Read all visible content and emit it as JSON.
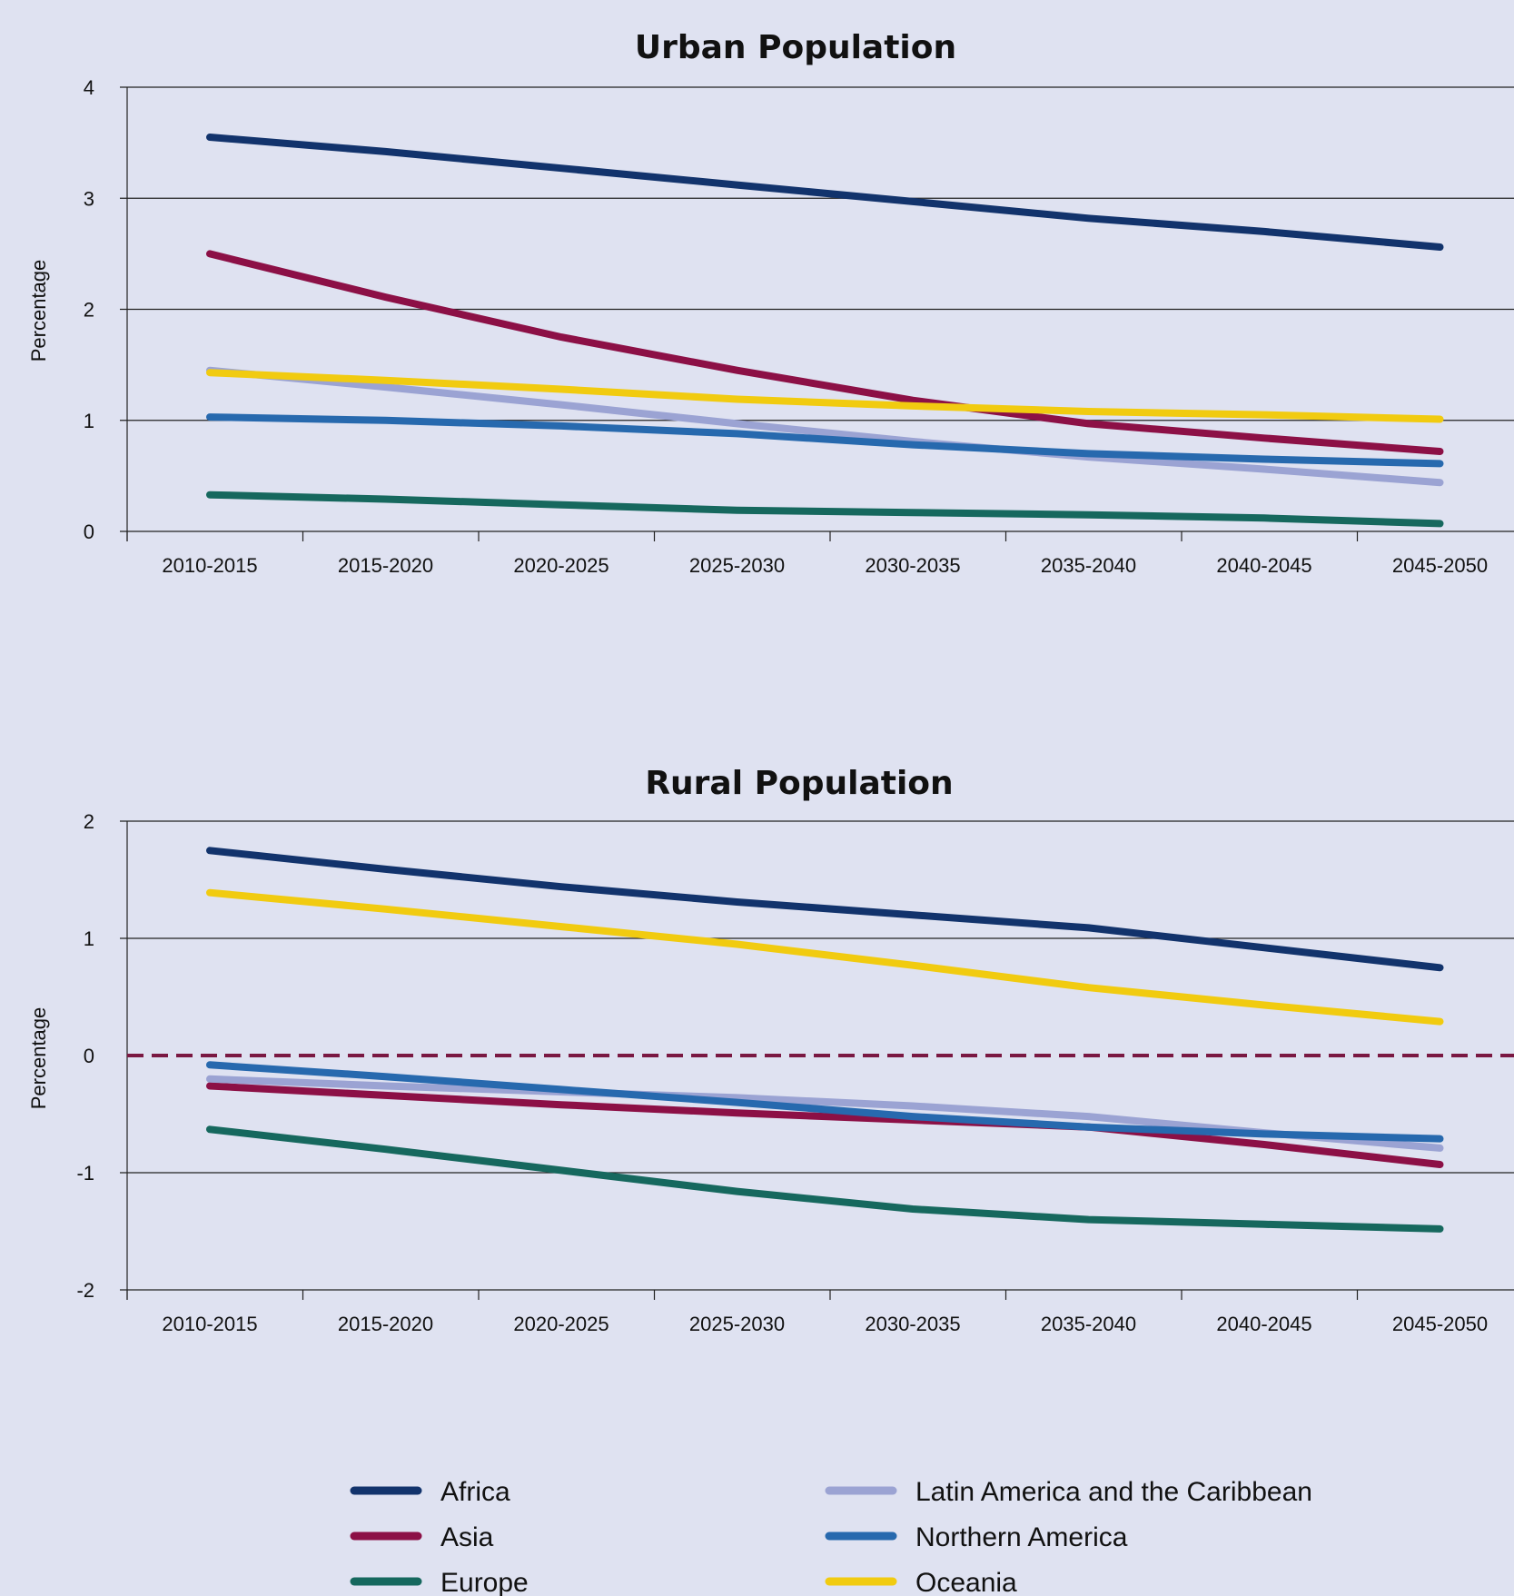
{
  "colors": {
    "background": "#dfe2f1",
    "Africa": "#12336c",
    "Asia": "#8c1046",
    "Europe": "#16685e",
    "Latin America and the Caribbean": "#9ba3d3",
    "Northern America": "#2769ae",
    "Oceania": "#f1cb10",
    "zero_line": "#7a1842"
  },
  "legend": {
    "placement": "bottom",
    "items": [
      "Africa",
      "Asia",
      "Europe",
      "Latin America and the Caribbean",
      "Northern America",
      "Oceania"
    ]
  },
  "chart_data": [
    {
      "type": "line",
      "title": "Urban Population",
      "ylabel": "Percentage",
      "xlabel": "",
      "ylim": [
        0,
        4
      ],
      "yticks": [
        0,
        1,
        2,
        3,
        4
      ],
      "grid": "horizontal",
      "categories": [
        "2010-2015",
        "2015-2020",
        "2020-2025",
        "2025-2030",
        "2030-2035",
        "2035-2040",
        "2040-2045",
        "2045-2050"
      ],
      "series": [
        {
          "name": "Africa",
          "values": [
            3.55,
            3.42,
            3.27,
            3.12,
            2.97,
            2.82,
            2.7,
            2.56
          ]
        },
        {
          "name": "Asia",
          "values": [
            2.5,
            2.11,
            1.75,
            1.45,
            1.18,
            0.97,
            0.84,
            0.72
          ]
        },
        {
          "name": "Europe",
          "values": [
            0.33,
            0.29,
            0.24,
            0.19,
            0.17,
            0.15,
            0.12,
            0.07
          ]
        },
        {
          "name": "Latin America and the Caribbean",
          "values": [
            1.45,
            1.3,
            1.14,
            0.97,
            0.81,
            0.67,
            0.56,
            0.44
          ]
        },
        {
          "name": "Northern America",
          "values": [
            1.03,
            1.0,
            0.95,
            0.88,
            0.78,
            0.7,
            0.65,
            0.61
          ]
        },
        {
          "name": "Oceania",
          "values": [
            1.43,
            1.36,
            1.28,
            1.19,
            1.13,
            1.08,
            1.05,
            1.01
          ]
        }
      ]
    },
    {
      "type": "line",
      "title": "Rural Population",
      "ylabel": "Percentage",
      "xlabel": "",
      "ylim": [
        -2,
        2
      ],
      "yticks": [
        -2,
        -1,
        0,
        1,
        2
      ],
      "grid": "horizontal",
      "zero_line": "dashed",
      "categories": [
        "2010-2015",
        "2015-2020",
        "2020-2025",
        "2025-2030",
        "2030-2035",
        "2035-2040",
        "2040-2045",
        "2045-2050"
      ],
      "series": [
        {
          "name": "Africa",
          "values": [
            1.75,
            1.59,
            1.44,
            1.31,
            1.2,
            1.09,
            0.92,
            0.75
          ]
        },
        {
          "name": "Asia",
          "values": [
            -0.26,
            -0.34,
            -0.42,
            -0.49,
            -0.55,
            -0.61,
            -0.76,
            -0.93
          ]
        },
        {
          "name": "Europe",
          "values": [
            -0.63,
            -0.8,
            -0.98,
            -1.16,
            -1.31,
            -1.4,
            -1.44,
            -1.48
          ]
        },
        {
          "name": "Latin America and the Caribbean",
          "values": [
            -0.2,
            -0.26,
            -0.31,
            -0.36,
            -0.43,
            -0.52,
            -0.66,
            -0.79
          ]
        },
        {
          "name": "Northern America",
          "values": [
            -0.08,
            -0.18,
            -0.29,
            -0.4,
            -0.52,
            -0.61,
            -0.67,
            -0.71
          ]
        },
        {
          "name": "Oceania",
          "values": [
            1.39,
            1.25,
            1.1,
            0.95,
            0.77,
            0.58,
            0.43,
            0.29
          ]
        }
      ]
    }
  ]
}
